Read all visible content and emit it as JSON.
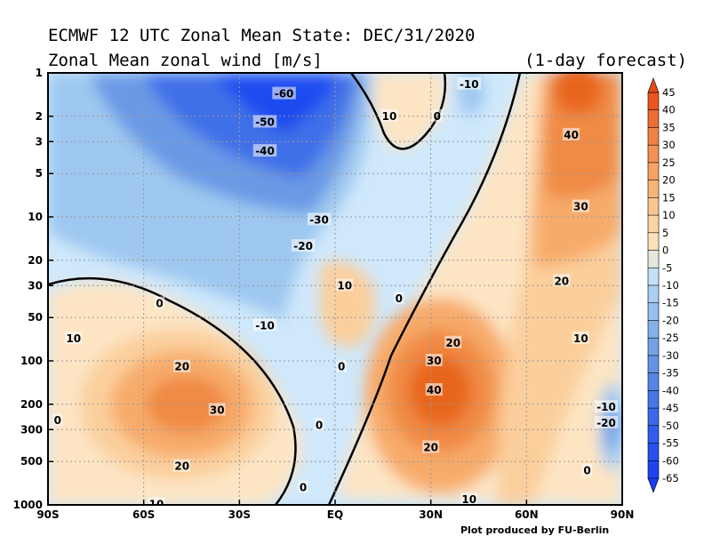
{
  "header": {
    "title_line1": "ECMWF 12 UTC Zonal Mean State: DEC/31/2020",
    "title_line2": "Zonal Mean zonal wind [m/s]",
    "forecast_note": "(1-day forecast)"
  },
  "footer": {
    "credit": "Plot produced by FU-Berlin"
  },
  "chart_data": {
    "type": "heatmap",
    "title": "Zonal Mean zonal wind [m/s]",
    "xlabel": "",
    "ylabel": "",
    "x_ticks": [
      "90S",
      "60S",
      "30S",
      "EQ",
      "30N",
      "60N",
      "90N"
    ],
    "x_values": [
      -90,
      -60,
      -30,
      0,
      30,
      60,
      90
    ],
    "y_ticks": [
      "1",
      "2",
      "3",
      "5",
      "10",
      "20",
      "30",
      "50",
      "100",
      "200",
      "300",
      "500",
      "1000"
    ],
    "y_values": [
      1,
      2,
      3,
      5,
      10,
      20,
      30,
      50,
      100,
      200,
      300,
      500,
      1000
    ],
    "y_scale": "log",
    "y_reversed": true,
    "xlim": [
      -90,
      90
    ],
    "ylim": [
      1000,
      1
    ],
    "grid": true,
    "colorbar": {
      "labels": [
        "45",
        "40",
        "35",
        "30",
        "25",
        "20",
        "15",
        "10",
        "5",
        "0",
        "-5",
        "-10",
        "-15",
        "-20",
        "-25",
        "-30",
        "-35",
        "-40",
        "-45",
        "-50",
        "-55",
        "-60",
        "-65"
      ],
      "top_color": "#e84a14",
      "bottom_color": "#1a3cf0"
    },
    "features": [
      {
        "kind": "jet",
        "value": -60,
        "lat": -16,
        "p": 1.4
      },
      {
        "kind": "jet",
        "value": 45,
        "lat": 77,
        "p": 1.2
      },
      {
        "kind": "jet",
        "value": 40,
        "lat": 33,
        "p": 170
      },
      {
        "kind": "jet",
        "value": 30,
        "lat": -47,
        "p": 200
      },
      {
        "kind": "local_max",
        "value": 10,
        "lat": 2,
        "p": 45
      },
      {
        "kind": "local_min",
        "value": -20,
        "lat": 85,
        "p": 300
      }
    ],
    "contour_labels": [
      {
        "text": "-60",
        "lat": -16,
        "p": 1.4
      },
      {
        "text": "-50",
        "lat": -22,
        "p": 2.2
      },
      {
        "text": "-40",
        "lat": -22,
        "p": 3.5
      },
      {
        "text": "-30",
        "lat": -5,
        "p": 10.5
      },
      {
        "text": "-20",
        "lat": -10,
        "p": 16
      },
      {
        "text": "-10",
        "lat": -22,
        "p": 57
      },
      {
        "text": "-10",
        "lat": 42,
        "p": 1.2
      },
      {
        "text": "-10",
        "lat": 85,
        "p": 210
      },
      {
        "text": "-20",
        "lat": 85,
        "p": 270
      },
      {
        "text": "0",
        "lat": -55,
        "p": 40
      },
      {
        "text": "0",
        "lat": 2,
        "p": 110
      },
      {
        "text": "0",
        "lat": 20,
        "p": 37
      },
      {
        "text": "0",
        "lat": -5,
        "p": 280
      },
      {
        "text": "0",
        "lat": -10,
        "p": 760
      },
      {
        "text": "0",
        "lat": 32,
        "p": 2
      },
      {
        "text": "0",
        "lat": -87,
        "p": 260
      },
      {
        "text": "0",
        "lat": 79,
        "p": 580
      },
      {
        "text": "10",
        "lat": 17,
        "p": 2
      },
      {
        "text": "10",
        "lat": 3,
        "p": 30
      },
      {
        "text": "10",
        "lat": -82,
        "p": 70
      },
      {
        "text": "10",
        "lat": 77,
        "p": 70
      },
      {
        "text": "10",
        "lat": -56,
        "p": 990
      },
      {
        "text": "10",
        "lat": 42,
        "p": 920
      },
      {
        "text": "20",
        "lat": -48,
        "p": 110
      },
      {
        "text": "20",
        "lat": 37,
        "p": 75
      },
      {
        "text": "20",
        "lat": 71,
        "p": 28
      },
      {
        "text": "20",
        "lat": 30,
        "p": 400
      },
      {
        "text": "20",
        "lat": -48,
        "p": 540
      },
      {
        "text": "30",
        "lat": -37,
        "p": 220
      },
      {
        "text": "30",
        "lat": 31,
        "p": 100
      },
      {
        "text": "30",
        "lat": 77,
        "p": 8.5
      },
      {
        "text": "40",
        "lat": 31,
        "p": 160
      },
      {
        "text": "40",
        "lat": 74,
        "p": 2.7
      }
    ]
  }
}
